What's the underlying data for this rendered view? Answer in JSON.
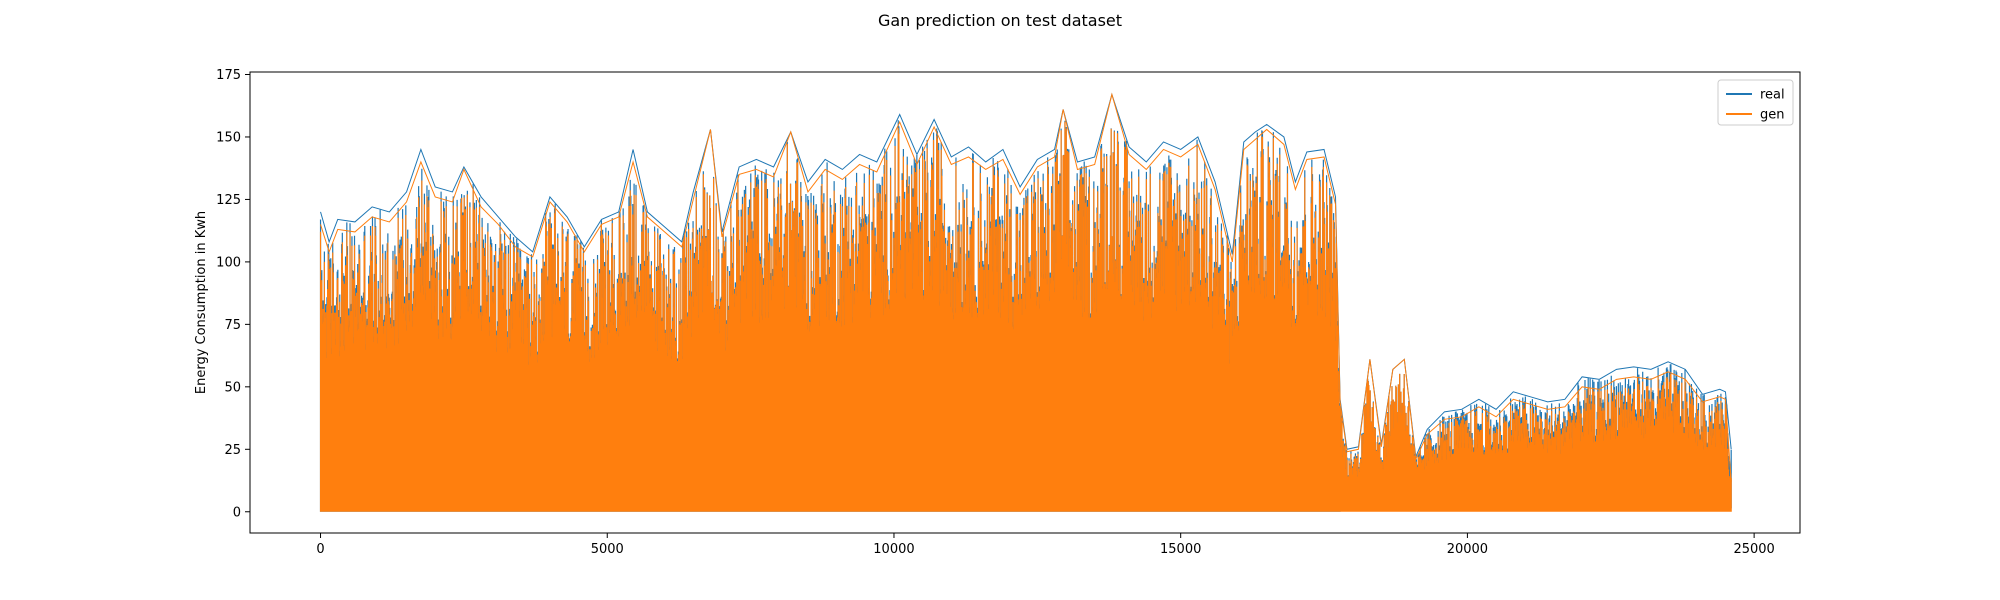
{
  "chart_data": {
    "type": "line",
    "title": "Gan prediction on test dataset",
    "xlabel": "",
    "ylabel": "Energy Consumption in Kwh",
    "xlim": [
      -1230,
      25800
    ],
    "ylim": [
      -8.5,
      176
    ],
    "xticks": [
      0,
      5000,
      10000,
      15000,
      20000,
      25000
    ],
    "yticks": [
      0,
      25,
      50,
      75,
      100,
      125,
      150,
      175
    ],
    "grid": false,
    "legend_position": "top-right",
    "x_range": [
      0,
      24600
    ],
    "series": [
      {
        "name": "real",
        "color": "#1f77b4",
        "peak_envelope": [
          [
            0,
            120
          ],
          [
            150,
            108
          ],
          [
            300,
            117
          ],
          [
            600,
            116
          ],
          [
            900,
            122
          ],
          [
            1200,
            120
          ],
          [
            1500,
            128
          ],
          [
            1750,
            145
          ],
          [
            2000,
            130
          ],
          [
            2300,
            128
          ],
          [
            2500,
            138
          ],
          [
            2800,
            126
          ],
          [
            3100,
            118
          ],
          [
            3400,
            110
          ],
          [
            3700,
            104
          ],
          [
            4000,
            126
          ],
          [
            4300,
            118
          ],
          [
            4600,
            106
          ],
          [
            4900,
            117
          ],
          [
            5200,
            120
          ],
          [
            5450,
            145
          ],
          [
            5700,
            120
          ],
          [
            6000,
            114
          ],
          [
            6300,
            108
          ],
          [
            6500,
            128
          ],
          [
            6800,
            153
          ],
          [
            7000,
            112
          ],
          [
            7300,
            138
          ],
          [
            7600,
            141
          ],
          [
            7900,
            138
          ],
          [
            8200,
            152
          ],
          [
            8500,
            132
          ],
          [
            8800,
            141
          ],
          [
            9100,
            137
          ],
          [
            9400,
            143
          ],
          [
            9700,
            140
          ],
          [
            10100,
            159
          ],
          [
            10400,
            143
          ],
          [
            10700,
            157
          ],
          [
            11000,
            142
          ],
          [
            11300,
            146
          ],
          [
            11600,
            140
          ],
          [
            11900,
            145
          ],
          [
            12200,
            130
          ],
          [
            12500,
            141
          ],
          [
            12800,
            145
          ],
          [
            12950,
            161
          ],
          [
            13200,
            140
          ],
          [
            13500,
            142
          ],
          [
            13800,
            167
          ],
          [
            14100,
            146
          ],
          [
            14400,
            140
          ],
          [
            14700,
            148
          ],
          [
            15000,
            145
          ],
          [
            15300,
            150
          ],
          [
            15600,
            132
          ],
          [
            15900,
            103
          ],
          [
            16100,
            148
          ],
          [
            16300,
            152
          ],
          [
            16500,
            155
          ],
          [
            16800,
            150
          ],
          [
            17000,
            132
          ],
          [
            17200,
            144
          ],
          [
            17500,
            145
          ],
          [
            17700,
            126
          ],
          [
            17780,
            45
          ],
          [
            17900,
            25
          ],
          [
            18100,
            26
          ],
          [
            18300,
            61
          ],
          [
            18500,
            27
          ],
          [
            18700,
            57
          ],
          [
            18900,
            61
          ],
          [
            19100,
            22
          ],
          [
            19300,
            33
          ],
          [
            19600,
            40
          ],
          [
            19900,
            41
          ],
          [
            20200,
            45
          ],
          [
            20500,
            41
          ],
          [
            20800,
            48
          ],
          [
            21100,
            46
          ],
          [
            21400,
            44
          ],
          [
            21700,
            45
          ],
          [
            22000,
            54
          ],
          [
            22300,
            53
          ],
          [
            22600,
            57
          ],
          [
            22900,
            58
          ],
          [
            23200,
            57
          ],
          [
            23500,
            60
          ],
          [
            23800,
            57
          ],
          [
            24100,
            47
          ],
          [
            24400,
            49
          ],
          [
            24500,
            48
          ],
          [
            24600,
            25
          ]
        ]
      },
      {
        "name": "gen",
        "color": "#ff7f0e",
        "peak_envelope": [
          [
            0,
            115
          ],
          [
            150,
            104
          ],
          [
            300,
            113
          ],
          [
            600,
            112
          ],
          [
            900,
            118
          ],
          [
            1200,
            116
          ],
          [
            1500,
            124
          ],
          [
            1750,
            140
          ],
          [
            2000,
            126
          ],
          [
            2300,
            124
          ],
          [
            2500,
            137
          ],
          [
            2800,
            122
          ],
          [
            3100,
            115
          ],
          [
            3400,
            106
          ],
          [
            3700,
            102
          ],
          [
            4000,
            124
          ],
          [
            4300,
            116
          ],
          [
            4600,
            104
          ],
          [
            4900,
            115
          ],
          [
            5200,
            118
          ],
          [
            5450,
            140
          ],
          [
            5700,
            118
          ],
          [
            6000,
            112
          ],
          [
            6300,
            106
          ],
          [
            6500,
            125
          ],
          [
            6800,
            153
          ],
          [
            7000,
            110
          ],
          [
            7300,
            135
          ],
          [
            7600,
            137
          ],
          [
            7900,
            134
          ],
          [
            8200,
            152
          ],
          [
            8500,
            128
          ],
          [
            8800,
            137
          ],
          [
            9100,
            133
          ],
          [
            9400,
            139
          ],
          [
            9700,
            136
          ],
          [
            10100,
            156
          ],
          [
            10400,
            139
          ],
          [
            10700,
            154
          ],
          [
            11000,
            139
          ],
          [
            11300,
            142
          ],
          [
            11600,
            137
          ],
          [
            11900,
            141
          ],
          [
            12200,
            127
          ],
          [
            12500,
            138
          ],
          [
            12800,
            142
          ],
          [
            12950,
            161
          ],
          [
            13200,
            137
          ],
          [
            13500,
            139
          ],
          [
            13800,
            167
          ],
          [
            14100,
            143
          ],
          [
            14400,
            137
          ],
          [
            14700,
            145
          ],
          [
            15000,
            142
          ],
          [
            15300,
            147
          ],
          [
            15600,
            129
          ],
          [
            15900,
            100
          ],
          [
            16100,
            145
          ],
          [
            16300,
            149
          ],
          [
            16500,
            153
          ],
          [
            16800,
            147
          ],
          [
            17000,
            129
          ],
          [
            17200,
            141
          ],
          [
            17500,
            142
          ],
          [
            17700,
            123
          ],
          [
            17780,
            44
          ],
          [
            17900,
            24
          ],
          [
            18100,
            25
          ],
          [
            18300,
            61
          ],
          [
            18500,
            26
          ],
          [
            18700,
            57
          ],
          [
            18900,
            61
          ],
          [
            19100,
            21
          ],
          [
            19300,
            31
          ],
          [
            19600,
            37
          ],
          [
            19900,
            38
          ],
          [
            20200,
            42
          ],
          [
            20500,
            38
          ],
          [
            20800,
            45
          ],
          [
            21100,
            43
          ],
          [
            21400,
            41
          ],
          [
            21700,
            42
          ],
          [
            22000,
            50
          ],
          [
            22300,
            49
          ],
          [
            22600,
            53
          ],
          [
            22900,
            54
          ],
          [
            23200,
            53
          ],
          [
            23500,
            56
          ],
          [
            23800,
            53
          ],
          [
            24100,
            44
          ],
          [
            24400,
            46
          ],
          [
            24500,
            45
          ],
          [
            24600,
            12
          ]
        ]
      }
    ]
  }
}
